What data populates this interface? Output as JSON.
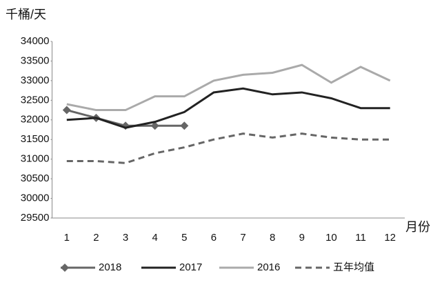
{
  "chart_data": {
    "type": "line",
    "y_label": "千桶/天",
    "x_label": "月份",
    "categories": [
      "1",
      "2",
      "3",
      "4",
      "5",
      "6",
      "7",
      "8",
      "9",
      "10",
      "11",
      "12"
    ],
    "ylim": [
      29500,
      34000
    ],
    "yticks": [
      29500,
      30000,
      30500,
      31000,
      31500,
      32000,
      32500,
      33000,
      33500,
      34000
    ],
    "grid": false,
    "legend": "bottom",
    "series": [
      {
        "name": "2018",
        "color": "#666666",
        "marker": "diamond",
        "dash": false,
        "values": [
          32250,
          32050,
          31850,
          31850,
          31850,
          null,
          null,
          null,
          null,
          null,
          null,
          null
        ]
      },
      {
        "name": "2017",
        "color": "#222222",
        "dash": false,
        "values": [
          32000,
          32050,
          31800,
          31950,
          32200,
          32700,
          32800,
          32650,
          32700,
          32550,
          32300,
          32300
        ]
      },
      {
        "name": "2016",
        "color": "#aaaaaa",
        "dash": false,
        "values": [
          32400,
          32250,
          32250,
          32600,
          32600,
          33000,
          33150,
          33200,
          33400,
          32950,
          33350,
          33000
        ]
      },
      {
        "name": "五年均值",
        "color": "#666666",
        "dash": true,
        "values": [
          30950,
          30950,
          30900,
          31150,
          31300,
          31500,
          31650,
          31550,
          31650,
          31550,
          31500,
          31500
        ]
      }
    ]
  }
}
